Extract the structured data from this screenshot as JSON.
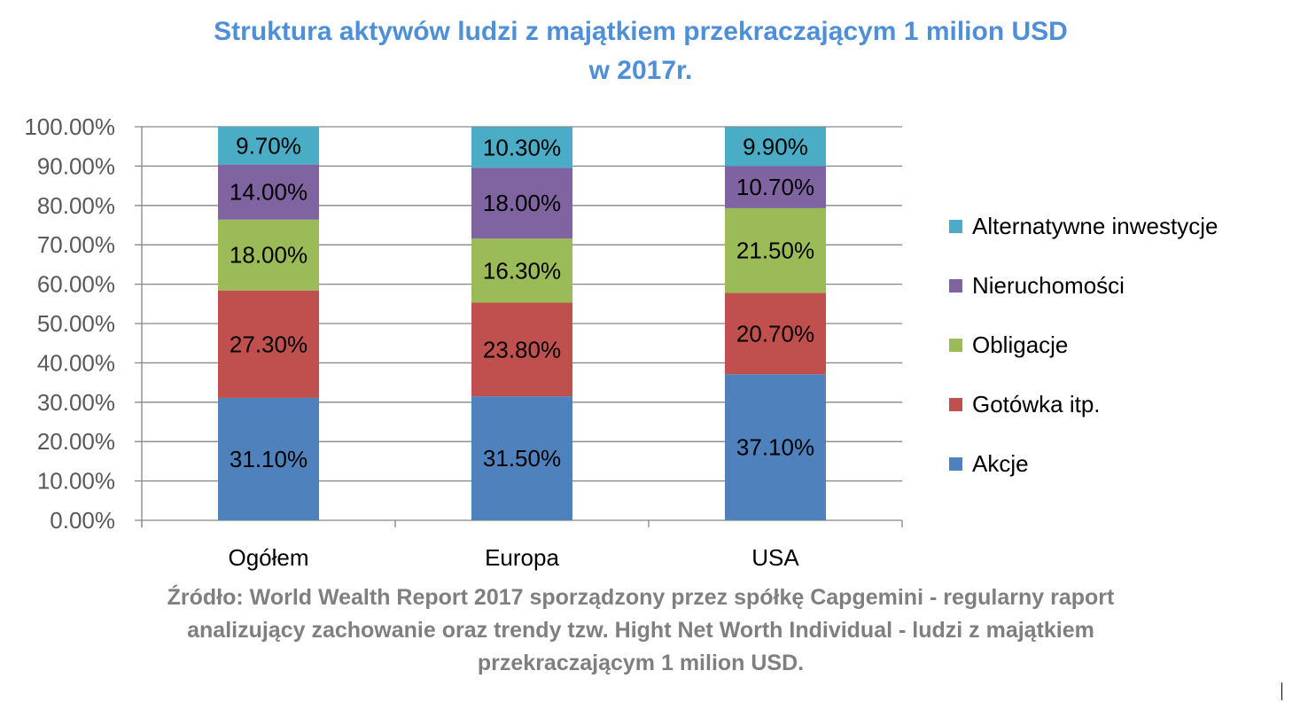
{
  "chart_data": {
    "type": "bar",
    "stacked": true,
    "title": "Struktura aktywów ludzi z majątkiem przekraczającym 1 milion USD",
    "title_line2": "w 2017r.",
    "categories": [
      "Ogółem",
      "Europa",
      "USA"
    ],
    "series": [
      {
        "name": "Akcje",
        "color": "#4F81BD",
        "values": [
          31.1,
          31.5,
          37.1
        ],
        "labels": [
          "31.10%",
          "31.50%",
          "37.10%"
        ]
      },
      {
        "name": "Gotówka itp.",
        "color": "#C0504D",
        "values": [
          27.3,
          23.8,
          20.7
        ],
        "labels": [
          "27.30%",
          "23.80%",
          "20.70%"
        ]
      },
      {
        "name": "Obligacje",
        "color": "#9BBB59",
        "values": [
          18.0,
          16.3,
          21.5
        ],
        "labels": [
          "18.00%",
          "16.30%",
          "21.50%"
        ]
      },
      {
        "name": "Nieruchomości",
        "color": "#8064A2",
        "values": [
          14.0,
          18.0,
          10.7
        ],
        "labels": [
          "14.00%",
          "18.00%",
          "10.70%"
        ]
      },
      {
        "name": "Alternatywne inwestycje",
        "color": "#4BACC6",
        "values": [
          9.7,
          10.3,
          9.9
        ],
        "labels": [
          "9.70%",
          "10.30%",
          "9.90%"
        ]
      }
    ],
    "ylim": [
      0,
      100
    ],
    "yticks": [
      "0.00%",
      "10.00%",
      "20.00%",
      "30.00%",
      "40.00%",
      "50.00%",
      "60.00%",
      "70.00%",
      "80.00%",
      "90.00%",
      "100.00%"
    ],
    "grid": true,
    "legend": "right",
    "xlabel": "",
    "ylabel": ""
  },
  "source": "Źródło: World Wealth Report 2017 sporządzony przez spółkę Capgemini - regularny raport analizujący zachowanie oraz trendy tzw. Hight Net Worth Individual - ludzi z majątkiem przekraczającym 1 milion USD."
}
